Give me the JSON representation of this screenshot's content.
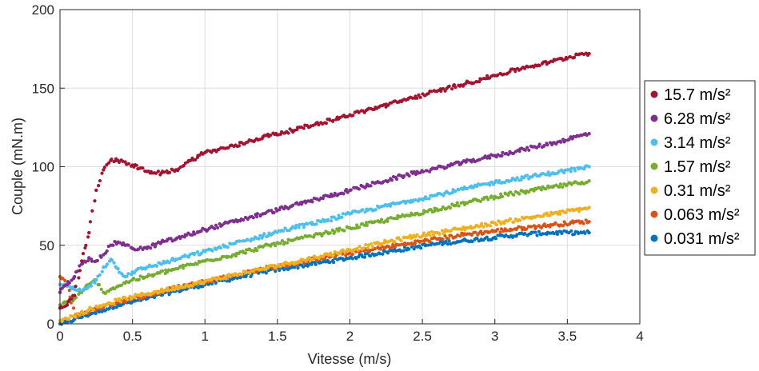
{
  "chart_data": {
    "type": "scatter",
    "title": "",
    "xlabel": "Vitesse  (m/s)",
    "ylabel": "Couple (mN.m)",
    "xlim": [
      0,
      4
    ],
    "ylim": [
      0,
      200
    ],
    "xticks": [
      "0",
      "0.5",
      "1",
      "1.5",
      "2",
      "2.5",
      "3",
      "3.5",
      "4"
    ],
    "yticks": [
      "0",
      "50",
      "100",
      "150",
      "200"
    ],
    "grid": true,
    "legend_position": "right",
    "series": [
      {
        "name": "15.7 m/s²",
        "color": "#A2142F",
        "x": [
          0.0,
          0.05,
          0.1,
          0.15,
          0.2,
          0.25,
          0.3,
          0.35,
          0.4,
          0.45,
          0.5,
          0.55,
          0.6,
          0.65,
          0.7,
          0.8,
          0.9,
          1.0,
          1.2,
          1.4,
          1.6,
          1.8,
          2.0,
          2.2,
          2.4,
          2.6,
          2.8,
          3.0,
          3.2,
          3.4,
          3.6,
          3.65
        ],
        "y": [
          10,
          12,
          18,
          40,
          58,
          85,
          98,
          104,
          104,
          103,
          101,
          99,
          97,
          96,
          96,
          98,
          104,
          109,
          113,
          119,
          123,
          128,
          133,
          138,
          143,
          148,
          153,
          158,
          163,
          167,
          172,
          172
        ]
      },
      {
        "name": "6.28 m/s²",
        "color": "#7E2F8E",
        "x": [
          0.0,
          0.05,
          0.1,
          0.15,
          0.2,
          0.25,
          0.3,
          0.35,
          0.4,
          0.45,
          0.5,
          0.6,
          0.7,
          0.8,
          1.0,
          1.2,
          1.4,
          1.6,
          1.8,
          2.0,
          2.2,
          2.4,
          2.6,
          2.8,
          3.0,
          3.2,
          3.4,
          3.6,
          3.65
        ],
        "y": [
          20,
          25,
          30,
          38,
          42,
          40,
          44,
          50,
          52,
          50,
          48,
          48,
          52,
          54,
          60,
          65,
          70,
          75,
          80,
          85,
          90,
          95,
          99,
          103,
          107,
          111,
          115,
          120,
          121
        ]
      },
      {
        "name": "3.14 m/s²",
        "color": "#4DBEEE",
        "x": [
          0.0,
          0.05,
          0.1,
          0.15,
          0.2,
          0.25,
          0.3,
          0.35,
          0.4,
          0.45,
          0.5,
          0.6,
          0.8,
          1.0,
          1.2,
          1.4,
          1.6,
          1.8,
          2.0,
          2.2,
          2.4,
          2.6,
          2.8,
          3.0,
          3.2,
          3.4,
          3.6,
          3.65
        ],
        "y": [
          25,
          24,
          22,
          21,
          24,
          28,
          36,
          41,
          35,
          30,
          33,
          36,
          41,
          46,
          51,
          56,
          61,
          65,
          70,
          74,
          78,
          82,
          86,
          90,
          93,
          96,
          99,
          100
        ]
      },
      {
        "name": "1.57 m/s²",
        "color": "#77AC30",
        "x": [
          0.0,
          0.05,
          0.1,
          0.15,
          0.2,
          0.25,
          0.3,
          0.35,
          0.4,
          0.45,
          0.5,
          0.6,
          0.8,
          1.0,
          1.2,
          1.4,
          1.6,
          1.8,
          2.0,
          2.2,
          2.4,
          2.6,
          2.8,
          3.0,
          3.2,
          3.4,
          3.6,
          3.65
        ],
        "y": [
          12,
          14,
          16,
          20,
          25,
          28,
          20,
          22,
          24,
          26,
          28,
          30,
          35,
          40,
          44,
          49,
          53,
          57,
          61,
          65,
          69,
          73,
          77,
          81,
          84,
          87,
          90,
          91
        ]
      },
      {
        "name": "0.31 m/s²",
        "color": "#EDB120",
        "x": [
          0.0,
          0.1,
          0.2,
          0.3,
          0.4,
          0.5,
          0.6,
          0.8,
          1.0,
          1.2,
          1.4,
          1.6,
          1.8,
          2.0,
          2.2,
          2.4,
          2.6,
          2.8,
          3.0,
          3.2,
          3.4,
          3.6,
          3.65
        ],
        "y": [
          2,
          5,
          9,
          12,
          15,
          17,
          19,
          23,
          27,
          31,
          35,
          39,
          43,
          47,
          51,
          55,
          58,
          61,
          64,
          67,
          70,
          73,
          74
        ]
      },
      {
        "name": "0.063 m/s²",
        "color": "#D95319",
        "x": [
          0.0,
          0.05,
          0.1,
          0.2,
          0.3,
          0.4,
          0.5,
          0.6,
          0.8,
          1.0,
          1.2,
          1.4,
          1.6,
          1.8,
          2.0,
          2.2,
          2.4,
          2.6,
          2.8,
          3.0,
          3.2,
          3.4,
          3.6,
          3.65
        ],
        "y": [
          30,
          25,
          5,
          8,
          11,
          14,
          16,
          18,
          23,
          27,
          31,
          35,
          38,
          42,
          45,
          48,
          51,
          54,
          57,
          59,
          61,
          63,
          65,
          65
        ]
      },
      {
        "name": "0.031 m/s²",
        "color": "#0072BD",
        "x": [
          0.0,
          0.05,
          0.1,
          0.2,
          0.3,
          0.4,
          0.5,
          0.6,
          0.8,
          1.0,
          1.2,
          1.4,
          1.6,
          1.8,
          2.0,
          2.2,
          2.4,
          2.6,
          2.8,
          3.0,
          3.2,
          3.4,
          3.6,
          3.65
        ],
        "y": [
          0,
          1,
          3,
          6,
          9,
          12,
          14,
          16,
          21,
          25,
          29,
          33,
          36,
          39,
          42,
          45,
          48,
          51,
          53,
          55,
          57,
          58,
          58,
          58
        ]
      }
    ]
  }
}
